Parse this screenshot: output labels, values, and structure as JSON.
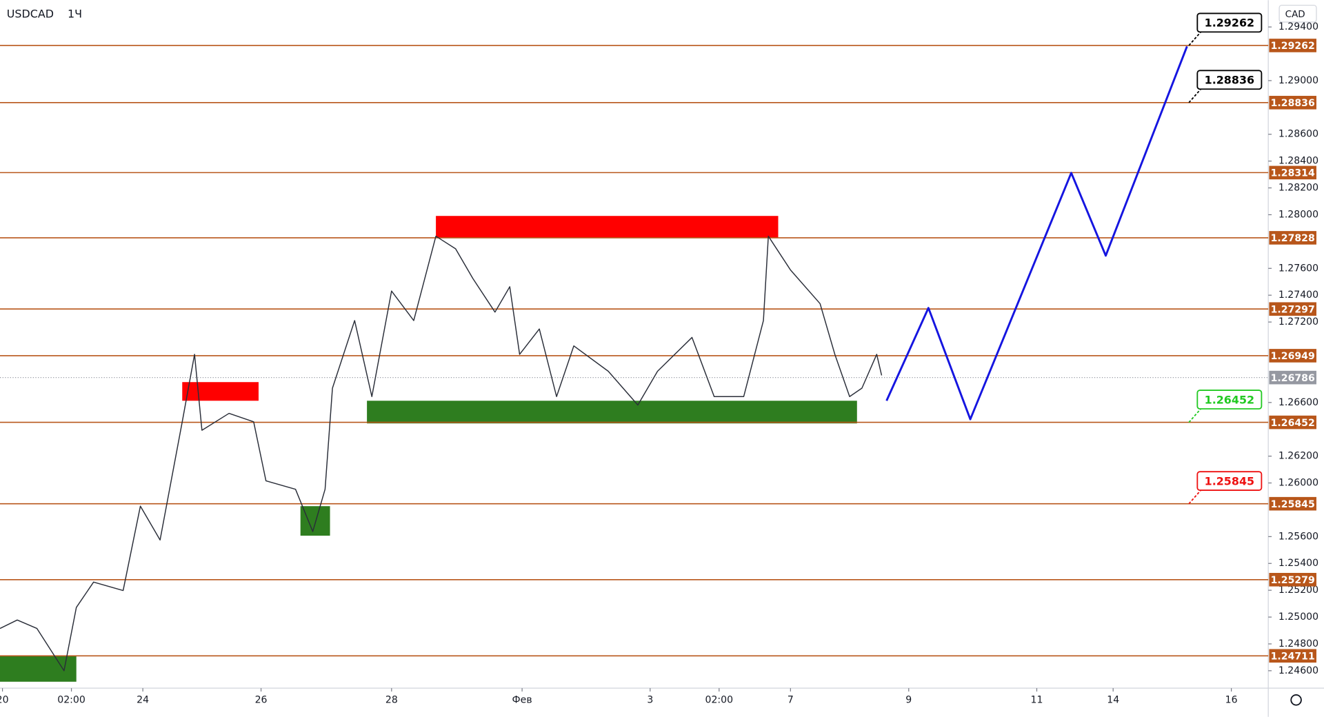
{
  "chart_data": {
    "type": "line",
    "symbol": "USDCAD",
    "interval": "1Ч",
    "currency": "CAD",
    "xlim": [
      0,
      515
    ],
    "ylim": [
      1.2447,
      1.296
    ],
    "xticks": [
      {
        "value": 1,
        "label": "20"
      },
      {
        "value": 29,
        "label": "02:00"
      },
      {
        "value": 58,
        "label": "24"
      },
      {
        "value": 106,
        "label": "26"
      },
      {
        "value": 159,
        "label": "28"
      },
      {
        "value": 212,
        "label": "Фев"
      },
      {
        "value": 264,
        "label": "3"
      },
      {
        "value": 292,
        "label": "02:00"
      },
      {
        "value": 321,
        "label": "7"
      },
      {
        "value": 369,
        "label": "9"
      },
      {
        "value": 421,
        "label": "11"
      },
      {
        "value": 452,
        "label": "14"
      },
      {
        "value": 500,
        "label": "16"
      }
    ],
    "yticks": [
      {
        "value": 1.294,
        "label": "1.29400"
      },
      {
        "value": 1.29,
        "label": "1.29000"
      },
      {
        "value": 1.286,
        "label": "1.28600"
      },
      {
        "value": 1.284,
        "label": "1.28400"
      },
      {
        "value": 1.282,
        "label": "1.28200"
      },
      {
        "value": 1.28,
        "label": "1.28000"
      },
      {
        "value": 1.276,
        "label": "1.27600"
      },
      {
        "value": 1.274,
        "label": "1.27400"
      },
      {
        "value": 1.272,
        "label": "1.27200"
      },
      {
        "value": 1.266,
        "label": "1.26600"
      },
      {
        "value": 1.262,
        "label": "1.26200"
      },
      {
        "value": 1.26,
        "label": "1.26000"
      },
      {
        "value": 1.256,
        "label": "1.25600"
      },
      {
        "value": 1.254,
        "label": "1.25400"
      },
      {
        "value": 1.252,
        "label": "1.25200"
      },
      {
        "value": 1.25,
        "label": "1.25000"
      },
      {
        "value": 1.248,
        "label": "1.24800"
      },
      {
        "value": 1.246,
        "label": "1.24600"
      }
    ],
    "series": [
      {
        "color": "#2a2e39",
        "x": [
          0,
          7,
          15,
          26,
          31,
          38,
          50,
          57,
          65,
          74,
          79,
          82,
          93,
          103,
          108,
          120,
          127,
          132,
          135,
          144,
          151,
          159,
          168,
          177,
          185,
          192,
          201,
          207,
          211,
          219,
          226,
          233,
          247,
          259,
          267,
          281,
          290,
          302,
          310,
          312,
          321,
          333,
          339,
          345,
          350,
          356,
          358
        ],
        "values": [
          1.24915,
          1.24978,
          1.24915,
          1.246,
          1.25072,
          1.25261,
          1.25198,
          1.25827,
          1.25575,
          1.26456,
          1.26959,
          1.26393,
          1.26519,
          1.26456,
          1.26016,
          1.25953,
          1.25638,
          1.25953,
          1.26707,
          1.27211,
          1.26644,
          1.27431,
          1.27211,
          1.2784,
          1.27746,
          1.27525,
          1.27274,
          1.27463,
          1.26959,
          1.27148,
          1.26644,
          1.27022,
          1.26833,
          1.26581,
          1.26833,
          1.27085,
          1.26644,
          1.26644,
          1.27211,
          1.2784,
          1.27588,
          1.27337,
          1.26959,
          1.26644,
          1.26707,
          1.26959,
          1.26802
        ]
      },
      {
        "color": "#1515e0",
        "x": [
          360,
          377,
          394,
          435,
          449,
          482
        ],
        "values": [
          1.26613,
          1.27305,
          1.26475,
          1.28312,
          1.27695,
          1.29255
        ]
      }
    ],
    "zones": [
      {
        "color": "#ff0000",
        "x": [
          177,
          316
        ],
        "values": [
          1.27828,
          1.27991
        ]
      },
      {
        "color": "#ff0000",
        "x": [
          74,
          105
        ],
        "values": [
          1.26613,
          1.26752
        ]
      },
      {
        "color": "#2e7d1f",
        "x": [
          149,
          348
        ],
        "values": [
          1.26444,
          1.26613
        ]
      },
      {
        "color": "#2e7d1f",
        "x": [
          122,
          134
        ],
        "values": [
          1.25607,
          1.25827
        ]
      },
      {
        "color": "#2e7d1f",
        "x": [
          0,
          31
        ],
        "values": [
          1.24518,
          1.24713
        ]
      }
    ],
    "levels": [
      1.29262,
      1.28836,
      1.28314,
      1.27828,
      1.27297,
      1.26949,
      1.26452,
      1.25845,
      1.25279,
      1.24711
    ],
    "level_color": "#b8561a",
    "current_price": 1.26786,
    "callouts": [
      {
        "value": 1.29262,
        "color": "#000000"
      },
      {
        "value": 1.28836,
        "color": "#000000"
      },
      {
        "value": 1.26452,
        "color": "#22c922"
      },
      {
        "value": 1.25845,
        "color": "#ee1111"
      }
    ]
  }
}
